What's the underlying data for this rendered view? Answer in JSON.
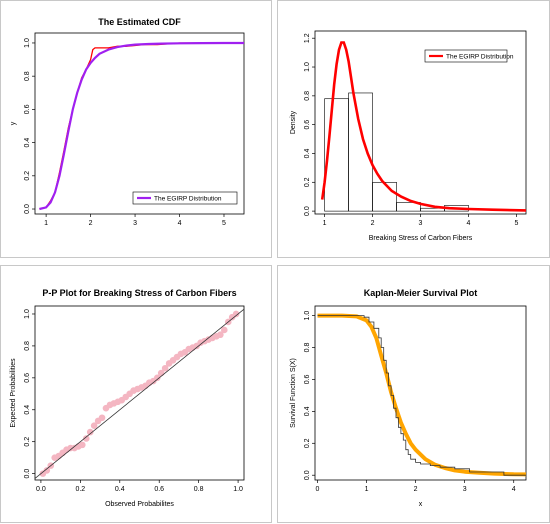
{
  "chart_data": [
    {
      "type": "line",
      "title": "The Estimated CDF",
      "xlabel": "",
      "ylabel": "y",
      "xlim": [
        0.75,
        5.45
      ],
      "ylim": [
        -0.03,
        1.06
      ],
      "xticks": [
        1,
        2,
        3,
        4,
        5
      ],
      "yticks": [
        0.0,
        0.2,
        0.4,
        0.6,
        0.8,
        1.0
      ],
      "xtick_labels": [
        "1",
        "2",
        "3",
        "4",
        "5"
      ],
      "ytick_labels": [
        "0.0",
        "0.2",
        "0.4",
        "0.6",
        "0.8",
        "1.0"
      ],
      "legend": {
        "position": "bottom-right",
        "entries": [
          {
            "label": "The EGIRP Distribution",
            "color": "#a020f0"
          }
        ]
      },
      "series": [
        {
          "name": "The EGIRP Distribution",
          "color": "#a020f0",
          "x": [
            0.85,
            1.0,
            1.1,
            1.2,
            1.3,
            1.4,
            1.5,
            1.6,
            1.7,
            1.8,
            1.9,
            2.0,
            2.1,
            2.2,
            2.4,
            2.6,
            2.8,
            3.0,
            3.3,
            3.6,
            4.0,
            4.5,
            5.0,
            5.45
          ],
          "y": [
            0.0,
            0.01,
            0.04,
            0.1,
            0.2,
            0.33,
            0.47,
            0.6,
            0.7,
            0.78,
            0.84,
            0.88,
            0.91,
            0.935,
            0.96,
            0.975,
            0.984,
            0.99,
            0.994,
            0.996,
            0.998,
            0.999,
            1.0,
            1.0
          ]
        },
        {
          "name": "",
          "color": "#ff0000",
          "x": [
            0.85,
            1.0,
            1.1,
            1.2,
            1.3,
            1.4,
            1.5,
            1.6,
            1.7,
            1.8,
            1.9,
            2.0,
            2.05,
            2.1,
            2.2,
            2.4,
            2.6,
            2.8,
            3.0,
            3.2,
            3.5,
            4.0,
            4.5,
            5.0,
            5.45
          ],
          "y": [
            0.0,
            0.01,
            0.05,
            0.1,
            0.22,
            0.35,
            0.49,
            0.6,
            0.7,
            0.79,
            0.84,
            0.9,
            0.96,
            0.97,
            0.97,
            0.97,
            0.98,
            0.98,
            0.985,
            0.99,
            0.99,
            1.0,
            1.0,
            1.0,
            1.0
          ]
        }
      ]
    },
    {
      "type": "bar",
      "title": "",
      "xlabel": "Breaking Stress of Carbon Fibers",
      "ylabel": "Density",
      "xlim": [
        0.8,
        5.2
      ],
      "ylim": [
        -0.02,
        1.25
      ],
      "xticks": [
        1,
        2,
        3,
        4,
        5
      ],
      "yticks": [
        0.0,
        0.2,
        0.4,
        0.6,
        0.8,
        1.0,
        1.2
      ],
      "xtick_labels": [
        "1",
        "2",
        "3",
        "4",
        "5"
      ],
      "ytick_labels": [
        "0.0",
        "0.2",
        "0.4",
        "0.6",
        "0.8",
        "1.0",
        "1.2"
      ],
      "legend": {
        "position": "top-right",
        "entries": [
          {
            "label": "The EGIRP Distribution",
            "color": "#ff0000"
          }
        ]
      },
      "bins": [
        {
          "x0": 1.0,
          "x1": 1.5,
          "value": 0.78
        },
        {
          "x0": 1.5,
          "x1": 2.0,
          "value": 0.82
        },
        {
          "x0": 2.0,
          "x1": 2.5,
          "value": 0.2
        },
        {
          "x0": 2.5,
          "x1": 3.0,
          "value": 0.06
        },
        {
          "x0": 3.0,
          "x1": 3.5,
          "value": 0.02
        },
        {
          "x0": 3.5,
          "x1": 4.0,
          "value": 0.04
        },
        {
          "x0": 4.0,
          "x1": 4.5,
          "value": 0.0
        },
        {
          "x0": 4.5,
          "x1": 5.0,
          "value": 0.0
        }
      ],
      "series": [
        {
          "name": "The EGIRP Distribution",
          "color": "#ff0000",
          "x": [
            0.95,
            1.0,
            1.05,
            1.1,
            1.15,
            1.2,
            1.25,
            1.3,
            1.35,
            1.4,
            1.45,
            1.5,
            1.55,
            1.6,
            1.7,
            1.8,
            1.9,
            2.0,
            2.1,
            2.2,
            2.4,
            2.6,
            2.8,
            3.0,
            3.3,
            3.6,
            4.0,
            4.5,
            5.2
          ],
          "y": [
            0.08,
            0.2,
            0.35,
            0.52,
            0.7,
            0.88,
            1.02,
            1.12,
            1.17,
            1.17,
            1.12,
            1.04,
            0.93,
            0.82,
            0.64,
            0.5,
            0.4,
            0.32,
            0.26,
            0.21,
            0.14,
            0.1,
            0.07,
            0.05,
            0.03,
            0.02,
            0.015,
            0.01,
            0.005
          ]
        }
      ]
    },
    {
      "type": "scatter",
      "title": "P-P Plot for Breaking Stress of Carbon Fibers",
      "xlabel": "Observed Probabilites",
      "ylabel": "Expected Probabilities",
      "xlim": [
        -0.03,
        1.03
      ],
      "ylim": [
        -0.04,
        1.05
      ],
      "xticks": [
        0.0,
        0.2,
        0.4,
        0.6,
        0.8,
        1.0
      ],
      "yticks": [
        0.0,
        0.2,
        0.4,
        0.6,
        0.8,
        1.0
      ],
      "xtick_labels": [
        "0.0",
        "0.2",
        "0.4",
        "0.6",
        "0.8",
        "1.0"
      ],
      "ytick_labels": [
        "0.0",
        "0.2",
        "0.4",
        "0.6",
        "0.8",
        "1.0"
      ],
      "reference_line": {
        "x": [
          -0.03,
          1.03
        ],
        "y": [
          -0.03,
          1.03
        ],
        "color": "#333333"
      },
      "series": [
        {
          "name": "",
          "color": "#f4b6c2",
          "x": [
            0.01,
            0.03,
            0.05,
            0.07,
            0.09,
            0.11,
            0.13,
            0.15,
            0.17,
            0.19,
            0.21,
            0.23,
            0.25,
            0.27,
            0.29,
            0.31,
            0.33,
            0.35,
            0.37,
            0.39,
            0.41,
            0.43,
            0.45,
            0.47,
            0.49,
            0.51,
            0.53,
            0.55,
            0.57,
            0.59,
            0.61,
            0.63,
            0.65,
            0.67,
            0.69,
            0.71,
            0.73,
            0.75,
            0.77,
            0.79,
            0.81,
            0.83,
            0.85,
            0.87,
            0.89,
            0.91,
            0.93,
            0.95,
            0.97,
            0.99
          ],
          "y": [
            0.0,
            0.02,
            0.05,
            0.1,
            0.11,
            0.13,
            0.15,
            0.16,
            0.16,
            0.17,
            0.18,
            0.22,
            0.26,
            0.3,
            0.33,
            0.35,
            0.41,
            0.43,
            0.44,
            0.45,
            0.46,
            0.48,
            0.5,
            0.52,
            0.53,
            0.54,
            0.55,
            0.57,
            0.58,
            0.6,
            0.63,
            0.66,
            0.69,
            0.71,
            0.73,
            0.75,
            0.76,
            0.78,
            0.79,
            0.8,
            0.82,
            0.83,
            0.84,
            0.85,
            0.86,
            0.87,
            0.9,
            0.95,
            0.98,
            1.0
          ]
        }
      ]
    },
    {
      "type": "line",
      "title": "Kaplan-Meier Survival Plot",
      "xlabel": "x",
      "ylabel": "Survival  Function S(X)",
      "xlim": [
        -0.05,
        4.25
      ],
      "ylim": [
        -0.03,
        1.06
      ],
      "xticks": [
        0,
        1,
        2,
        3,
        4
      ],
      "yticks": [
        0.0,
        0.2,
        0.4,
        0.6,
        0.8,
        1.0
      ],
      "xtick_labels": [
        "0",
        "1",
        "2",
        "3",
        "4"
      ],
      "ytick_labels": [
        "0.0",
        "0.2",
        "0.4",
        "0.6",
        "0.8",
        "1.0"
      ],
      "series": [
        {
          "name": "",
          "color": "#ffa500",
          "x": [
            0.0,
            0.5,
            0.8,
            1.0,
            1.1,
            1.2,
            1.3,
            1.4,
            1.5,
            1.6,
            1.7,
            1.8,
            1.9,
            2.0,
            2.2,
            2.4,
            2.6,
            2.8,
            3.0,
            3.3,
            3.6,
            4.0,
            4.25
          ],
          "y": [
            1.0,
            1.0,
            0.995,
            0.97,
            0.93,
            0.86,
            0.75,
            0.64,
            0.52,
            0.42,
            0.33,
            0.26,
            0.2,
            0.16,
            0.1,
            0.065,
            0.045,
            0.03,
            0.022,
            0.015,
            0.01,
            0.006,
            0.005
          ]
        },
        {
          "name": "",
          "color": "#333333",
          "step": true,
          "x": [
            0.0,
            0.95,
            1.05,
            1.15,
            1.25,
            1.3,
            1.35,
            1.4,
            1.45,
            1.5,
            1.55,
            1.6,
            1.65,
            1.7,
            1.75,
            1.8,
            1.85,
            1.9,
            2.0,
            2.1,
            2.3,
            2.5,
            2.8,
            3.1,
            3.8,
            4.25
          ],
          "y": [
            1.0,
            0.99,
            0.96,
            0.92,
            0.86,
            0.8,
            0.72,
            0.64,
            0.56,
            0.5,
            0.42,
            0.36,
            0.3,
            0.26,
            0.22,
            0.16,
            0.13,
            0.1,
            0.08,
            0.07,
            0.06,
            0.05,
            0.04,
            0.02,
            0.0,
            0.0
          ]
        }
      ]
    }
  ]
}
